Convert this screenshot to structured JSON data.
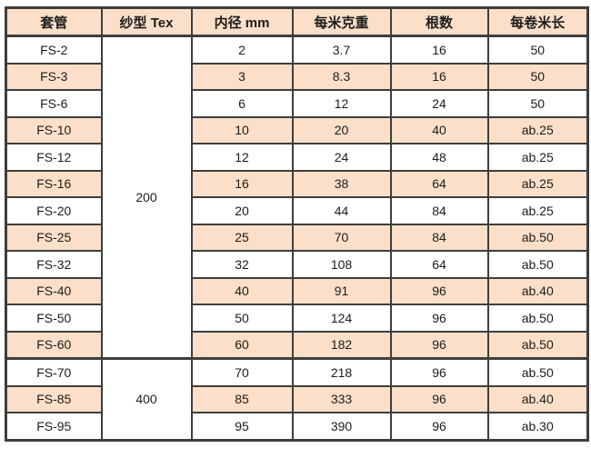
{
  "chart_data": {
    "type": "table",
    "columns": [
      "套管",
      "纱型 Tex",
      "内径 mm",
      "每米克重",
      "根数",
      "每卷米长"
    ],
    "tex_groups": [
      {
        "value": "200",
        "row_span": 12
      },
      {
        "value": "400",
        "row_span": 3
      }
    ],
    "rows": [
      {
        "sleeve": "FS-2",
        "inner_diameter_mm": "2",
        "grams_per_meter": "3.7",
        "strand_count": "16",
        "meters_per_roll": "50"
      },
      {
        "sleeve": "FS-3",
        "inner_diameter_mm": "3",
        "grams_per_meter": "8.3",
        "strand_count": "16",
        "meters_per_roll": "50"
      },
      {
        "sleeve": "FS-6",
        "inner_diameter_mm": "6",
        "grams_per_meter": "12",
        "strand_count": "24",
        "meters_per_roll": "50"
      },
      {
        "sleeve": "FS-10",
        "inner_diameter_mm": "10",
        "grams_per_meter": "20",
        "strand_count": "40",
        "meters_per_roll": "ab.25"
      },
      {
        "sleeve": "FS-12",
        "inner_diameter_mm": "12",
        "grams_per_meter": "24",
        "strand_count": "48",
        "meters_per_roll": "ab.25"
      },
      {
        "sleeve": "FS-16",
        "inner_diameter_mm": "16",
        "grams_per_meter": "38",
        "strand_count": "64",
        "meters_per_roll": "ab.25"
      },
      {
        "sleeve": "FS-20",
        "inner_diameter_mm": "20",
        "grams_per_meter": "44",
        "strand_count": "84",
        "meters_per_roll": "ab.25"
      },
      {
        "sleeve": "FS-25",
        "inner_diameter_mm": "25",
        "grams_per_meter": "70",
        "strand_count": "84",
        "meters_per_roll": "ab.50"
      },
      {
        "sleeve": "FS-32",
        "inner_diameter_mm": "32",
        "grams_per_meter": "108",
        "strand_count": "64",
        "meters_per_roll": "ab.50"
      },
      {
        "sleeve": "FS-40",
        "inner_diameter_mm": "40",
        "grams_per_meter": "91",
        "strand_count": "96",
        "meters_per_roll": "ab.40"
      },
      {
        "sleeve": "FS-50",
        "inner_diameter_mm": "50",
        "grams_per_meter": "124",
        "strand_count": "96",
        "meters_per_roll": "ab.50"
      },
      {
        "sleeve": "FS-60",
        "inner_diameter_mm": "60",
        "grams_per_meter": "182",
        "strand_count": "96",
        "meters_per_roll": "ab.50"
      },
      {
        "sleeve": "FS-70",
        "inner_diameter_mm": "70",
        "grams_per_meter": "218",
        "strand_count": "96",
        "meters_per_roll": "ab.50"
      },
      {
        "sleeve": "FS-85",
        "inner_diameter_mm": "85",
        "grams_per_meter": "333",
        "strand_count": "96",
        "meters_per_roll": "ab.40"
      },
      {
        "sleeve": "FS-95",
        "inner_diameter_mm": "95",
        "grams_per_meter": "390",
        "strand_count": "96",
        "meters_per_roll": "ab.30"
      }
    ]
  },
  "colors": {
    "header_bg": "#fbdfc8",
    "stripe_bg": "#fbdfc8",
    "border_color": "#3e3e3e",
    "text_color": "#1c1c1c",
    "page_bg": "#ffffff"
  }
}
